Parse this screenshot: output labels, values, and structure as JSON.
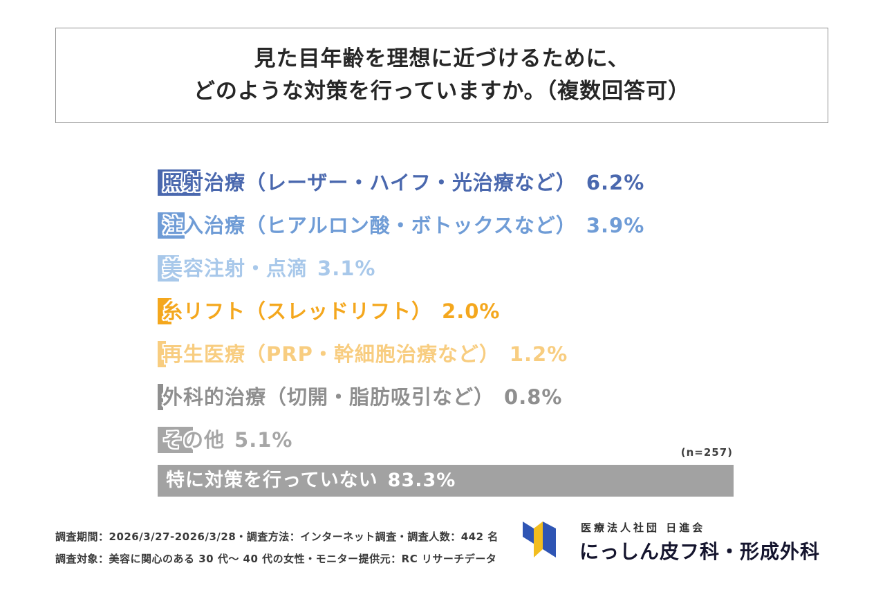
{
  "title": {
    "line1": "見た目年齢を理想に近づけるために、",
    "line2": "どのような対策を行っていますか。（複数回答可）"
  },
  "chart_data": {
    "type": "bar",
    "orientation": "horizontal",
    "title": "見た目年齢を理想に近づけるために、どのような対策を行っていますか。（複数回答可）",
    "n_label": "(n=257)",
    "xlim": [
      0,
      100
    ],
    "unit": "%",
    "grid": false,
    "legend": "none",
    "categories": [
      "照射治療（レーザー・ハイフ・光治療など）",
      "注入治療（ヒアルロン酸・ボトックスなど）",
      "美容注射・点滴",
      "糸リフト（スレッドリフト）",
      "再生医療（PRP・幹細胞治療など）",
      "外科的治療（切開・脂肪吸引など）",
      "その他",
      "特に対策を行っていない"
    ],
    "values": [
      6.2,
      3.9,
      3.1,
      2.0,
      1.2,
      0.8,
      5.1,
      83.3
    ],
    "bars": [
      {
        "label": "照射治療（レーザー・ハイフ・光治療など）",
        "pct_label": "6.2%",
        "value": 6.2,
        "color": "#4a68ae",
        "text_color": "#4a68ae"
      },
      {
        "label": "注入治療（ヒアルロン酸・ボトックスなど）",
        "pct_label": "3.9%",
        "value": 3.9,
        "color": "#6f9cd6",
        "text_color": "#6f9cd6"
      },
      {
        "label": "美容注射・点滴",
        "pct_label": "3.1%",
        "value": 3.1,
        "color": "#a8c8ea",
        "text_color": "#a8c8ea"
      },
      {
        "label": "糸リフト（スレッドリフト）",
        "pct_label": "2.0%",
        "value": 2.0,
        "color": "#f4a71d",
        "text_color": "#f4a71d"
      },
      {
        "label": "再生医療（PRP・幹細胞治療など）",
        "pct_label": "1.2%",
        "value": 1.2,
        "color": "#f8cd80",
        "text_color": "#f8cd80"
      },
      {
        "label": "外科的治療（切開・脂肪吸引など）",
        "pct_label": "0.8%",
        "value": 0.8,
        "color": "#8f8f8f",
        "text_color": "#8f8f8f"
      },
      {
        "label": "その他",
        "pct_label": "5.1%",
        "value": 5.1,
        "color": "#a6a6a6",
        "text_color": "#a6a6a6"
      },
      {
        "label": "特に対策を行っていない",
        "pct_label": "83.3%",
        "value": 83.3,
        "color": "#a2a2a2",
        "text_color": "#ffffff"
      }
    ]
  },
  "footer": {
    "line1": "調査期間：2026/3/27-2026/3/28・調査方法：インターネット調査・調査人数：442 名",
    "line2": "調査対象：美容に関心のある 30 代〜 40 代の女性・モニター提供元：RC リサーチデータ"
  },
  "logo": {
    "org": "医療法人社団 日進会",
    "name": "にっしん皮フ科・形成外科",
    "mark_blue": "#2f55b4",
    "mark_yellow": "#f2bd1f"
  }
}
